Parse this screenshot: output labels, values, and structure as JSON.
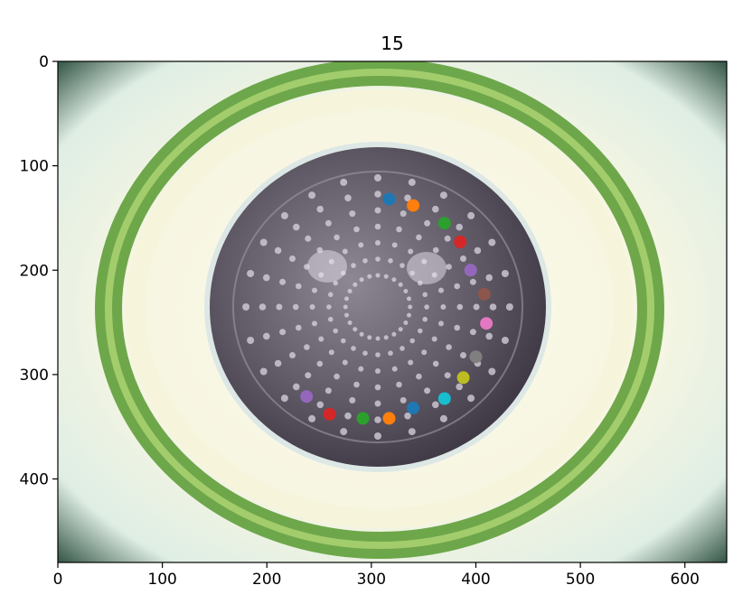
{
  "chart_data": {
    "type": "scatter",
    "title": "15",
    "xlabel": "",
    "ylabel": "",
    "xlim": [
      0,
      640
    ],
    "ylim": [
      480,
      0
    ],
    "y_inverted": true,
    "grid": false,
    "legend": "none",
    "xticks": [
      0,
      100,
      200,
      300,
      400,
      500,
      600
    ],
    "yticks": [
      0,
      100,
      200,
      300,
      400
    ],
    "xtick_labels": [
      "0",
      "100",
      "200",
      "300",
      "400",
      "500",
      "600"
    ],
    "ytick_labels": [
      "0",
      "100",
      "200",
      "300",
      "400"
    ],
    "background_image": "microscope image of a circular perforated disc (diatom) inside a green ring on a pale background",
    "points": [
      {
        "x": 317,
        "y": 132,
        "color": "#1f77b4"
      },
      {
        "x": 340,
        "y": 138,
        "color": "#ff7f0e"
      },
      {
        "x": 370,
        "y": 155,
        "color": "#2ca02c"
      },
      {
        "x": 385,
        "y": 173,
        "color": "#d62728"
      },
      {
        "x": 395,
        "y": 200,
        "color": "#9467bd"
      },
      {
        "x": 408,
        "y": 223,
        "color": "#8c564b"
      },
      {
        "x": 410,
        "y": 251,
        "color": "#e377c2"
      },
      {
        "x": 400,
        "y": 283,
        "color": "#7f7f7f"
      },
      {
        "x": 388,
        "y": 303,
        "color": "#bcbd22"
      },
      {
        "x": 370,
        "y": 323,
        "color": "#17becf"
      },
      {
        "x": 340,
        "y": 332,
        "color": "#1f77b4"
      },
      {
        "x": 317,
        "y": 342,
        "color": "#ff7f0e"
      },
      {
        "x": 292,
        "y": 342,
        "color": "#2ca02c"
      },
      {
        "x": 260,
        "y": 338,
        "color": "#d62728"
      },
      {
        "x": 238,
        "y": 321,
        "color": "#9467bd"
      }
    ]
  }
}
